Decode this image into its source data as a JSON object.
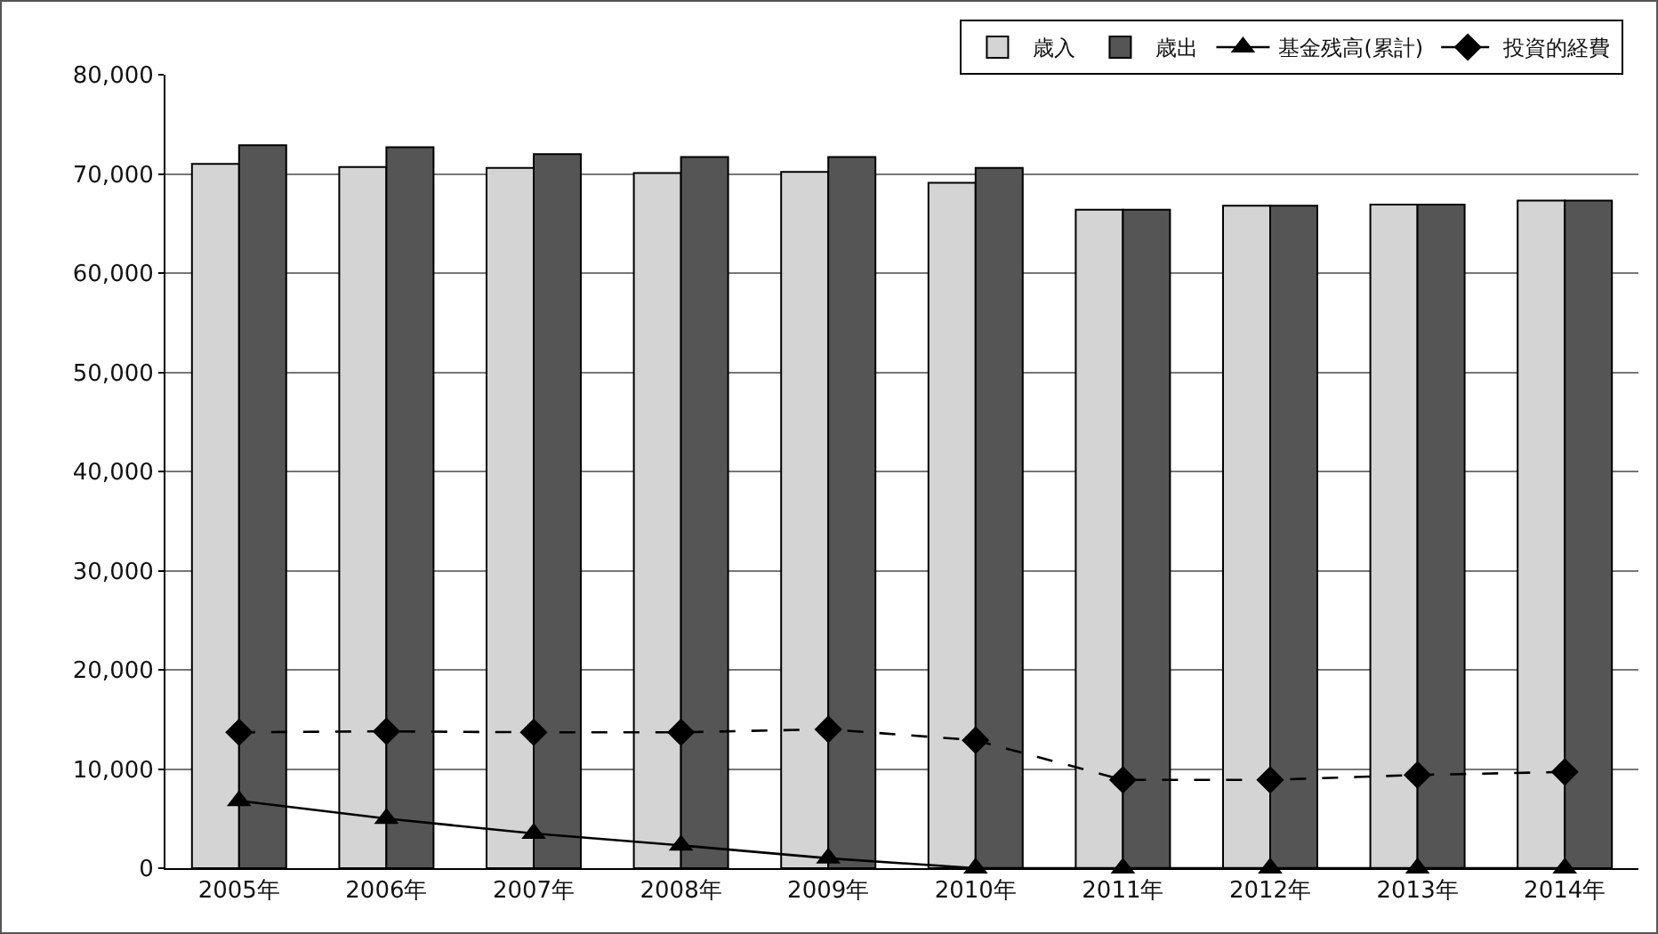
{
  "chart_data": {
    "type": "bar",
    "categories": [
      "2005年",
      "2006年",
      "2007年",
      "2008年",
      "2009年",
      "2010年",
      "2011年",
      "2012年",
      "2013年",
      "2014年"
    ],
    "ylim": [
      0,
      80000
    ],
    "yticks": [
      {
        "value": 0,
        "label": "0"
      },
      {
        "value": 10000,
        "label": "10,000"
      },
      {
        "value": 20000,
        "label": "20,000"
      },
      {
        "value": 30000,
        "label": "30,000"
      },
      {
        "value": 40000,
        "label": "40,000"
      },
      {
        "value": 50000,
        "label": "50,000"
      },
      {
        "value": 60000,
        "label": "60,000"
      },
      {
        "value": 70000,
        "label": "70,000"
      },
      {
        "value": 80000,
        "label": "80,000"
      }
    ],
    "grid": "y",
    "legend": "top right",
    "series": [
      {
        "name": "歳入",
        "color": "#d4d4d4",
        "values": [
          71000,
          70700,
          70600,
          70100,
          70200,
          69100,
          66400,
          66800,
          66900,
          67300
        ]
      },
      {
        "name": "歳出",
        "color": "#555555",
        "values": [
          72900,
          72700,
          72000,
          71700,
          71700,
          70600,
          66400,
          66800,
          66900,
          67300
        ]
      },
      {
        "name": "基金残高(累計)",
        "type": "line",
        "color": "#000000",
        "marker": "triangle",
        "line_style": "solid",
        "values": [
          6800,
          5000,
          3500,
          2300,
          1000,
          0,
          0,
          0,
          0,
          0
        ]
      },
      {
        "name": "投資的経費",
        "type": "line",
        "color": "#000000",
        "marker": "diamond",
        "line_style": "dashed",
        "values": [
          13700,
          13800,
          13700,
          13700,
          14000,
          12900,
          8900,
          8900,
          9400,
          9700
        ]
      }
    ]
  }
}
